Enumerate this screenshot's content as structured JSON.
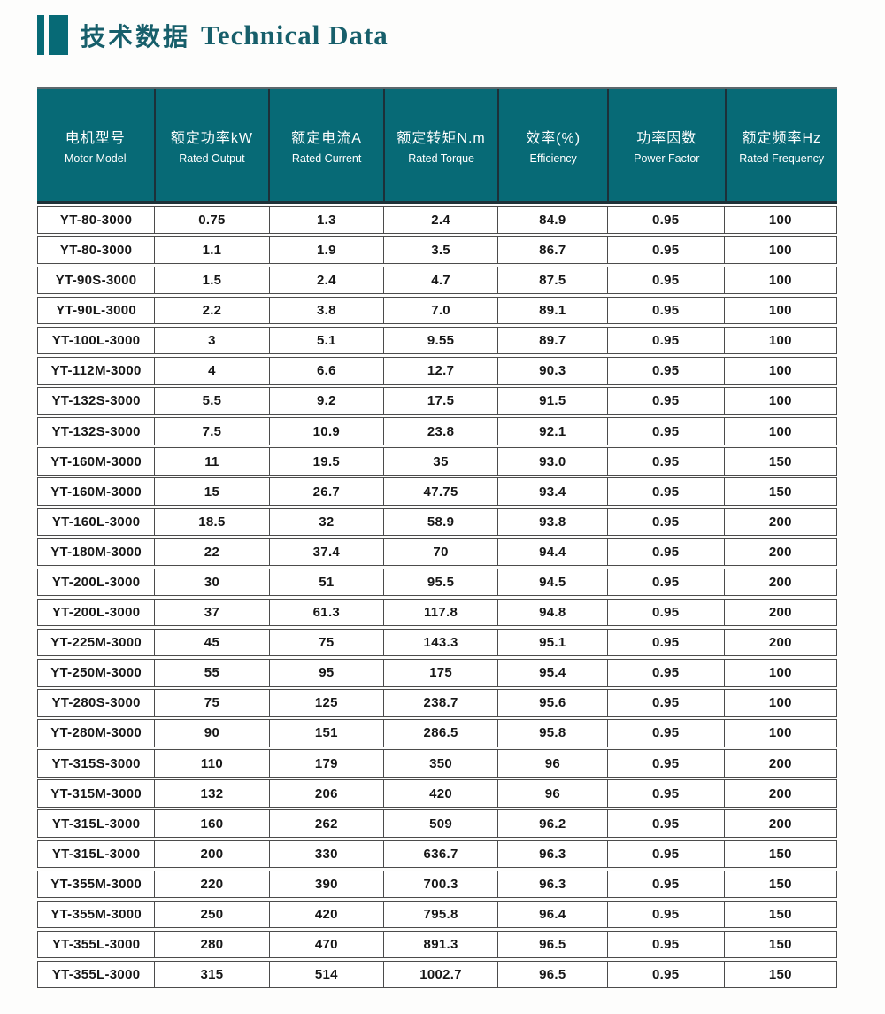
{
  "page": {
    "title_zh": "技术数据",
    "title_en": "Technical Data"
  },
  "colors": {
    "accent_teal": "#076a76",
    "title_teal": "#175f6b"
  },
  "table": {
    "columns": [
      {
        "zh": "电机型号",
        "en": "Motor Model"
      },
      {
        "zh": "额定功率kW",
        "en": "Rated Output"
      },
      {
        "zh": "额定电流A",
        "en": "Rated Current"
      },
      {
        "zh": "额定转矩N.m",
        "en": "Rated Torque"
      },
      {
        "zh": "效率(%)",
        "en": "Efficiency"
      },
      {
        "zh": "功率因数",
        "en": "Power Factor"
      },
      {
        "zh": "额定频率Hz",
        "en": "Rated Frequency"
      }
    ],
    "rows": [
      [
        "YT-80-3000",
        "0.75",
        "1.3",
        "2.4",
        "84.9",
        "0.95",
        "100"
      ],
      [
        "YT-80-3000",
        "1.1",
        "1.9",
        "3.5",
        "86.7",
        "0.95",
        "100"
      ],
      [
        "YT-90S-3000",
        "1.5",
        "2.4",
        "4.7",
        "87.5",
        "0.95",
        "100"
      ],
      [
        "YT-90L-3000",
        "2.2",
        "3.8",
        "7.0",
        "89.1",
        "0.95",
        "100"
      ],
      [
        "YT-100L-3000",
        "3",
        "5.1",
        "9.55",
        "89.7",
        "0.95",
        "100"
      ],
      [
        "YT-112M-3000",
        "4",
        "6.6",
        "12.7",
        "90.3",
        "0.95",
        "100"
      ],
      [
        "YT-132S-3000",
        "5.5",
        "9.2",
        "17.5",
        "91.5",
        "0.95",
        "100"
      ],
      [
        "YT-132S-3000",
        "7.5",
        "10.9",
        "23.8",
        "92.1",
        "0.95",
        "100"
      ],
      [
        "YT-160M-3000",
        "11",
        "19.5",
        "35",
        "93.0",
        "0.95",
        "150"
      ],
      [
        "YT-160M-3000",
        "15",
        "26.7",
        "47.75",
        "93.4",
        "0.95",
        "150"
      ],
      [
        "YT-160L-3000",
        "18.5",
        "32",
        "58.9",
        "93.8",
        "0.95",
        "200"
      ],
      [
        "YT-180M-3000",
        "22",
        "37.4",
        "70",
        "94.4",
        "0.95",
        "200"
      ],
      [
        "YT-200L-3000",
        "30",
        "51",
        "95.5",
        "94.5",
        "0.95",
        "200"
      ],
      [
        "YT-200L-3000",
        "37",
        "61.3",
        "117.8",
        "94.8",
        "0.95",
        "200"
      ],
      [
        "YT-225M-3000",
        "45",
        "75",
        "143.3",
        "95.1",
        "0.95",
        "200"
      ],
      [
        "YT-250M-3000",
        "55",
        "95",
        "175",
        "95.4",
        "0.95",
        "100"
      ],
      [
        "YT-280S-3000",
        "75",
        "125",
        "238.7",
        "95.6",
        "0.95",
        "100"
      ],
      [
        "YT-280M-3000",
        "90",
        "151",
        "286.5",
        "95.8",
        "0.95",
        "100"
      ],
      [
        "YT-315S-3000",
        "110",
        "179",
        "350",
        "96",
        "0.95",
        "200"
      ],
      [
        "YT-315M-3000",
        "132",
        "206",
        "420",
        "96",
        "0.95",
        "200"
      ],
      [
        "YT-315L-3000",
        "160",
        "262",
        "509",
        "96.2",
        "0.95",
        "200"
      ],
      [
        "YT-315L-3000",
        "200",
        "330",
        "636.7",
        "96.3",
        "0.95",
        "150"
      ],
      [
        "YT-355M-3000",
        "220",
        "390",
        "700.3",
        "96.3",
        "0.95",
        "150"
      ],
      [
        "YT-355M-3000",
        "250",
        "420",
        "795.8",
        "96.4",
        "0.95",
        "150"
      ],
      [
        "YT-355L-3000",
        "280",
        "470",
        "891.3",
        "96.5",
        "0.95",
        "150"
      ],
      [
        "YT-355L-3000",
        "315",
        "514",
        "1002.7",
        "96.5",
        "0.95",
        "150"
      ]
    ]
  }
}
